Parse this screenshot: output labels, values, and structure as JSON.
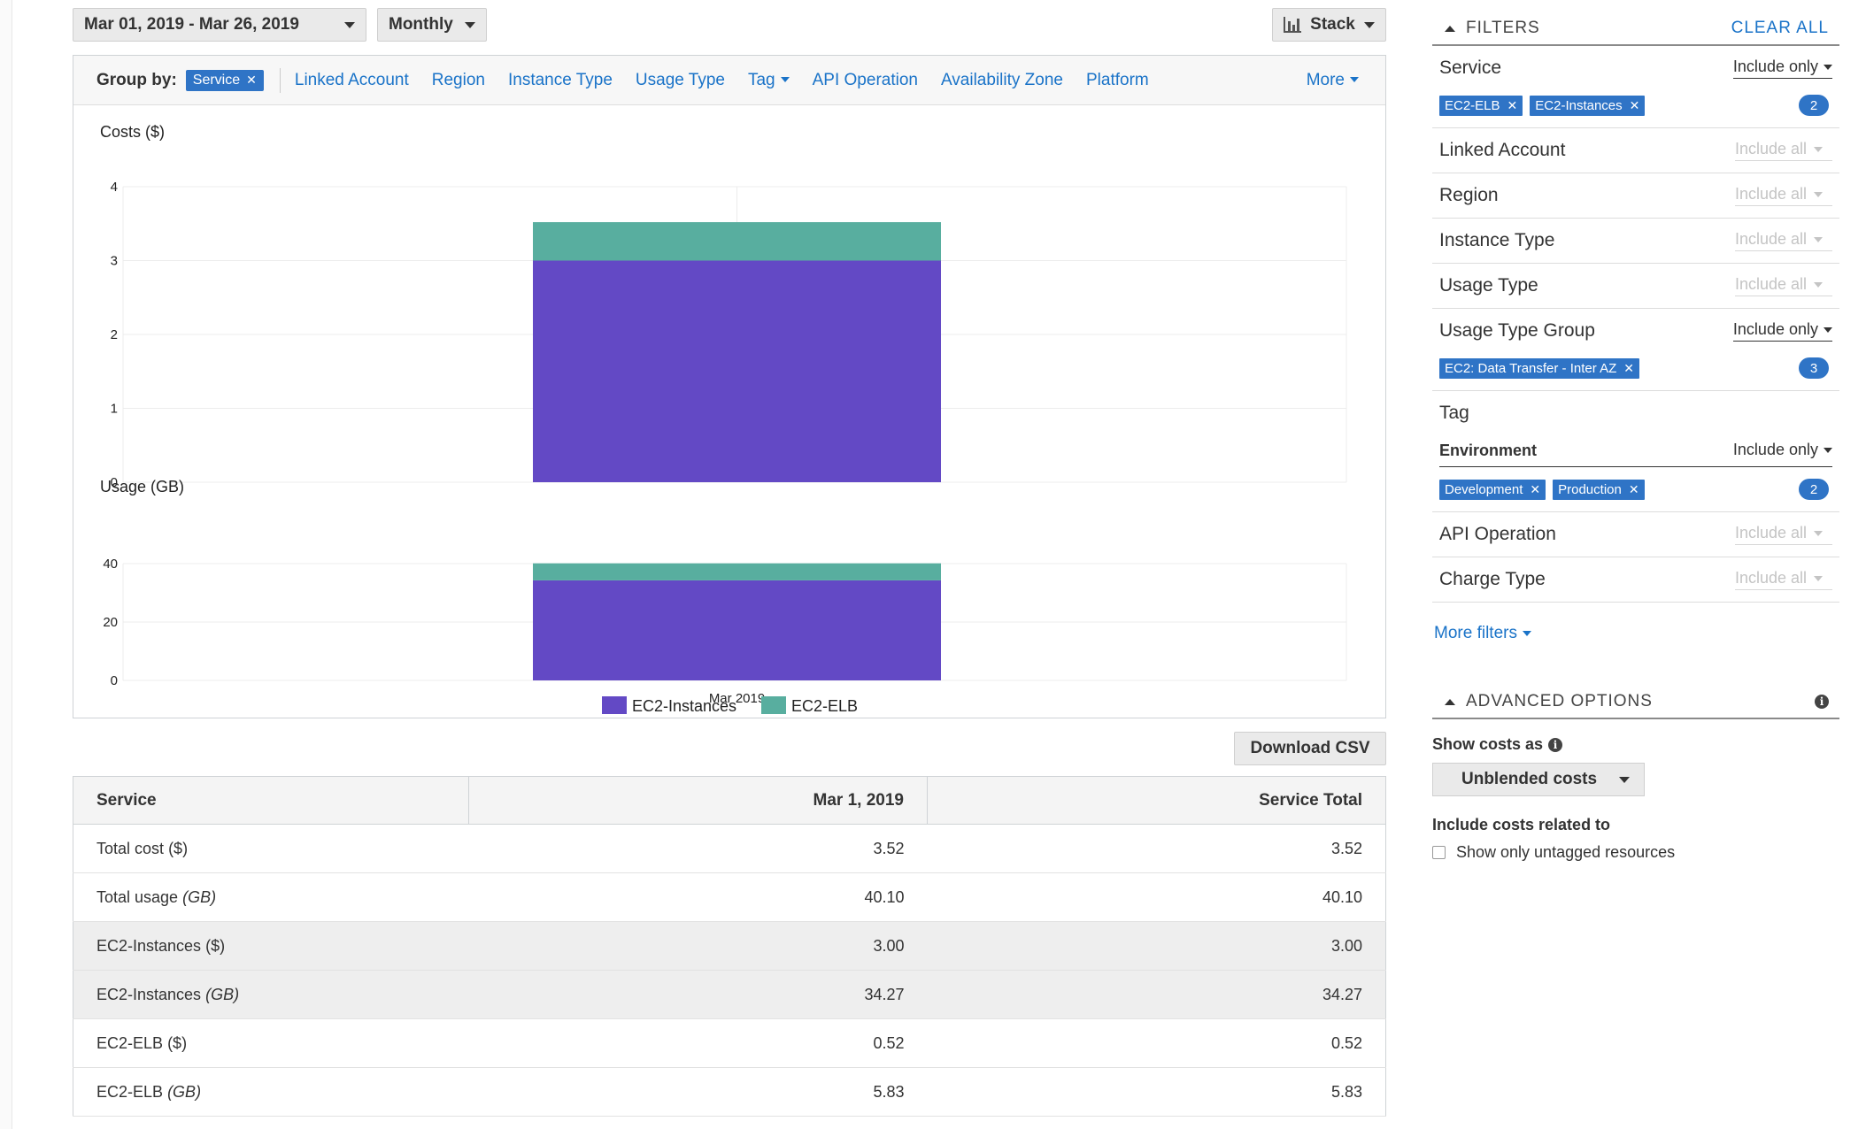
{
  "toolbar": {
    "date_range": "Mar 01, 2019 - Mar 26, 2019",
    "granularity": "Monthly",
    "chart_style": "Stack"
  },
  "group_by": {
    "label": "Group by:",
    "active": "Service",
    "options": [
      "Linked Account",
      "Region",
      "Instance Type",
      "Usage Type",
      "Tag",
      "API Operation",
      "Availability Zone",
      "Platform"
    ],
    "more": "More"
  },
  "colors": {
    "ec2_instances": "#6349c5",
    "ec2_elb": "#58ae9f",
    "accent": "#2f74c6",
    "link": "#1a73c8"
  },
  "chart_data": [
    {
      "type": "bar",
      "stacked": true,
      "title": "Costs ($)",
      "categories": [
        "Mar 2019"
      ],
      "series": [
        {
          "name": "EC2-Instances",
          "values": [
            3.0
          ]
        },
        {
          "name": "EC2-ELB",
          "values": [
            0.52
          ]
        }
      ],
      "ylim": [
        0,
        4
      ],
      "yticks": [
        "0",
        "1",
        "2",
        "3",
        "4"
      ],
      "grid": true
    },
    {
      "type": "bar",
      "stacked": true,
      "title": "Usage (GB)",
      "categories": [
        "Mar 2019"
      ],
      "series": [
        {
          "name": "EC2-Instances",
          "values": [
            34.27
          ]
        },
        {
          "name": "EC2-ELB",
          "values": [
            5.83
          ]
        }
      ],
      "ylim": [
        0,
        40
      ],
      "yticks": [
        "0",
        "20",
        "40"
      ],
      "grid": true,
      "legend": "bottom-center"
    }
  ],
  "download": "Download CSV",
  "table": {
    "headers": [
      "Service",
      "Mar 1, 2019",
      "Service Total"
    ],
    "rows": [
      {
        "label": "Total cost",
        "unit": "($)",
        "v1": "3.52",
        "v2": "3.52"
      },
      {
        "label": "Total usage",
        "unit": "(GB)",
        "v1": "40.10",
        "v2": "40.10"
      },
      {
        "label": "EC2-Instances",
        "unit": "($)",
        "v1": "3.00",
        "v2": "3.00"
      },
      {
        "label": "EC2-Instances",
        "unit": "(GB)",
        "v1": "34.27",
        "v2": "34.27"
      },
      {
        "label": "EC2-ELB",
        "unit": "($)",
        "v1": "0.52",
        "v2": "0.52"
      },
      {
        "label": "EC2-ELB",
        "unit": "(GB)",
        "v1": "5.83",
        "v2": "5.83"
      }
    ]
  },
  "filters": {
    "title": "FILTERS",
    "clear_all": "CLEAR ALL",
    "include_only": "Include only",
    "include_all": "Include all",
    "service": {
      "name": "Service",
      "tokens": [
        "EC2-ELB",
        "EC2-Instances"
      ],
      "count": "2"
    },
    "linked_account": "Linked Account",
    "region": "Region",
    "instance_type": "Instance Type",
    "usage_type": "Usage Type",
    "usage_type_group": {
      "name": "Usage Type Group",
      "tokens": [
        "EC2: Data Transfer - Inter AZ"
      ],
      "count": "3"
    },
    "tag": "Tag",
    "environment": {
      "name": "Environment",
      "tokens": [
        "Development",
        "Production"
      ],
      "count": "2"
    },
    "api_operation": "API Operation",
    "charge_type": "Charge Type",
    "more_filters": "More filters"
  },
  "advanced": {
    "title": "ADVANCED OPTIONS",
    "show_costs_as": "Show costs as",
    "costs_type": "Unblended costs",
    "include_related": "Include costs related to",
    "untagged": "Show only untagged resources"
  }
}
